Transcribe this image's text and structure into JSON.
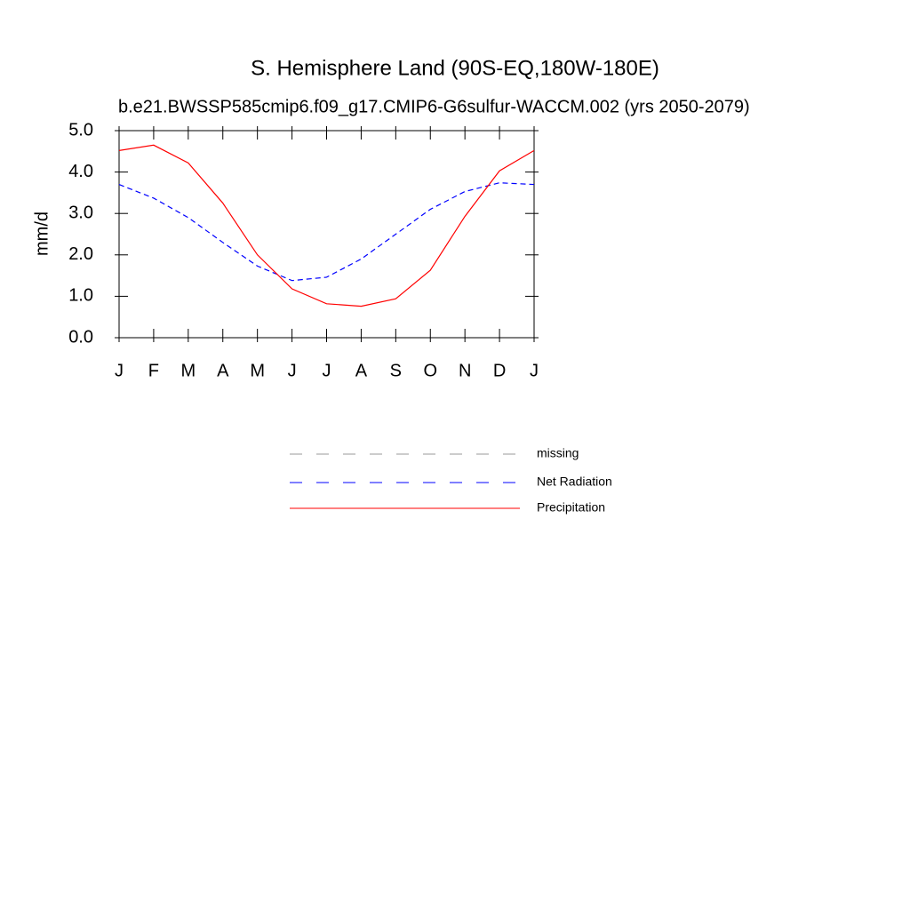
{
  "chart_data": {
    "type": "line",
    "title": "S. Hemisphere Land (90S-EQ,180W-180E)",
    "subtitle": "b.e21.BWSSP585cmip6.f09_g17.CMIP6-G6sulfur-WACCM.002 (yrs 2050-2079)",
    "y_label": "mm/d",
    "categories": [
      "J",
      "F",
      "M",
      "A",
      "M",
      "J",
      "J",
      "A",
      "S",
      "O",
      "N",
      "D",
      "J"
    ],
    "series": [
      {
        "name": "missing",
        "color": "#999999",
        "dash": true,
        "values": [
          null,
          null,
          null,
          null,
          null,
          null,
          null,
          null,
          null,
          null,
          null,
          null,
          null
        ]
      },
      {
        "name": "Net Radiation",
        "color": "#0000ff",
        "dash": true,
        "values": [
          3.7,
          3.37,
          2.9,
          2.3,
          1.73,
          1.38,
          1.46,
          1.9,
          2.5,
          3.1,
          3.53,
          3.74,
          3.7
        ]
      },
      {
        "name": "Precipitation",
        "color": "#ff0000",
        "dash": false,
        "values": [
          4.52,
          4.65,
          4.22,
          3.25,
          2.0,
          1.18,
          0.82,
          0.76,
          0.94,
          1.63,
          2.93,
          4.03,
          4.52
        ]
      }
    ],
    "ylim": [
      0,
      5
    ],
    "yticks": [
      {
        "value": 0,
        "label": "0.0"
      },
      {
        "value": 1,
        "label": "1.0"
      },
      {
        "value": 2,
        "label": "2.0"
      },
      {
        "value": 3,
        "label": "3.0"
      },
      {
        "value": 4,
        "label": "4.0"
      },
      {
        "value": 5,
        "label": "5.0"
      }
    ]
  }
}
